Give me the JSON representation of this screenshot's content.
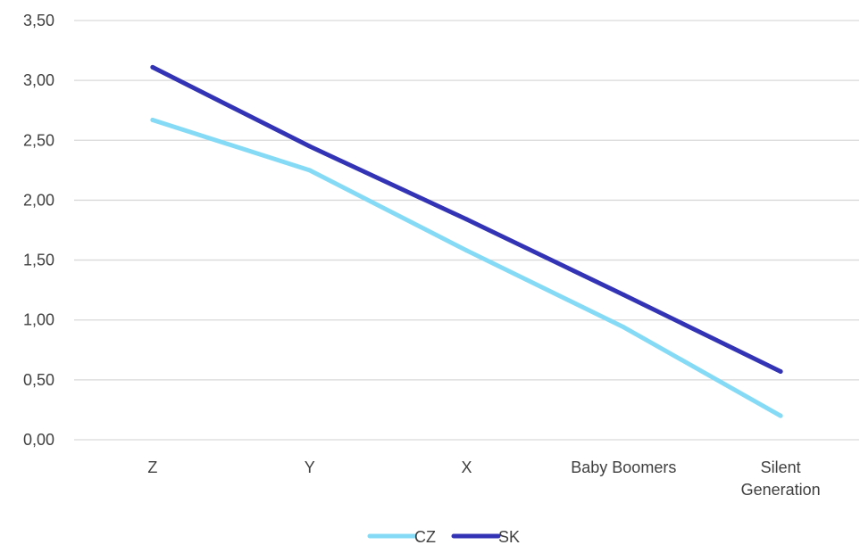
{
  "chart_data": {
    "type": "line",
    "categories": [
      "Z",
      "Y",
      "X",
      "Baby Boomers",
      "Silent Generation"
    ],
    "series": [
      {
        "name": "CZ",
        "values": [
          2.67,
          2.25,
          1.58,
          0.94,
          0.2
        ],
        "color": "#85dbf5"
      },
      {
        "name": "SK",
        "values": [
          3.11,
          2.45,
          1.84,
          1.21,
          0.57
        ],
        "color": "#3333b5"
      }
    ],
    "y_ticks": [
      "0,00",
      "0,50",
      "1,00",
      "1,50",
      "2,00",
      "2,50",
      "3,00",
      "3,50"
    ],
    "ylim": [
      0,
      3.5
    ],
    "grid": true,
    "legend": "bottom",
    "title": "",
    "xlabel": "",
    "ylabel": ""
  }
}
